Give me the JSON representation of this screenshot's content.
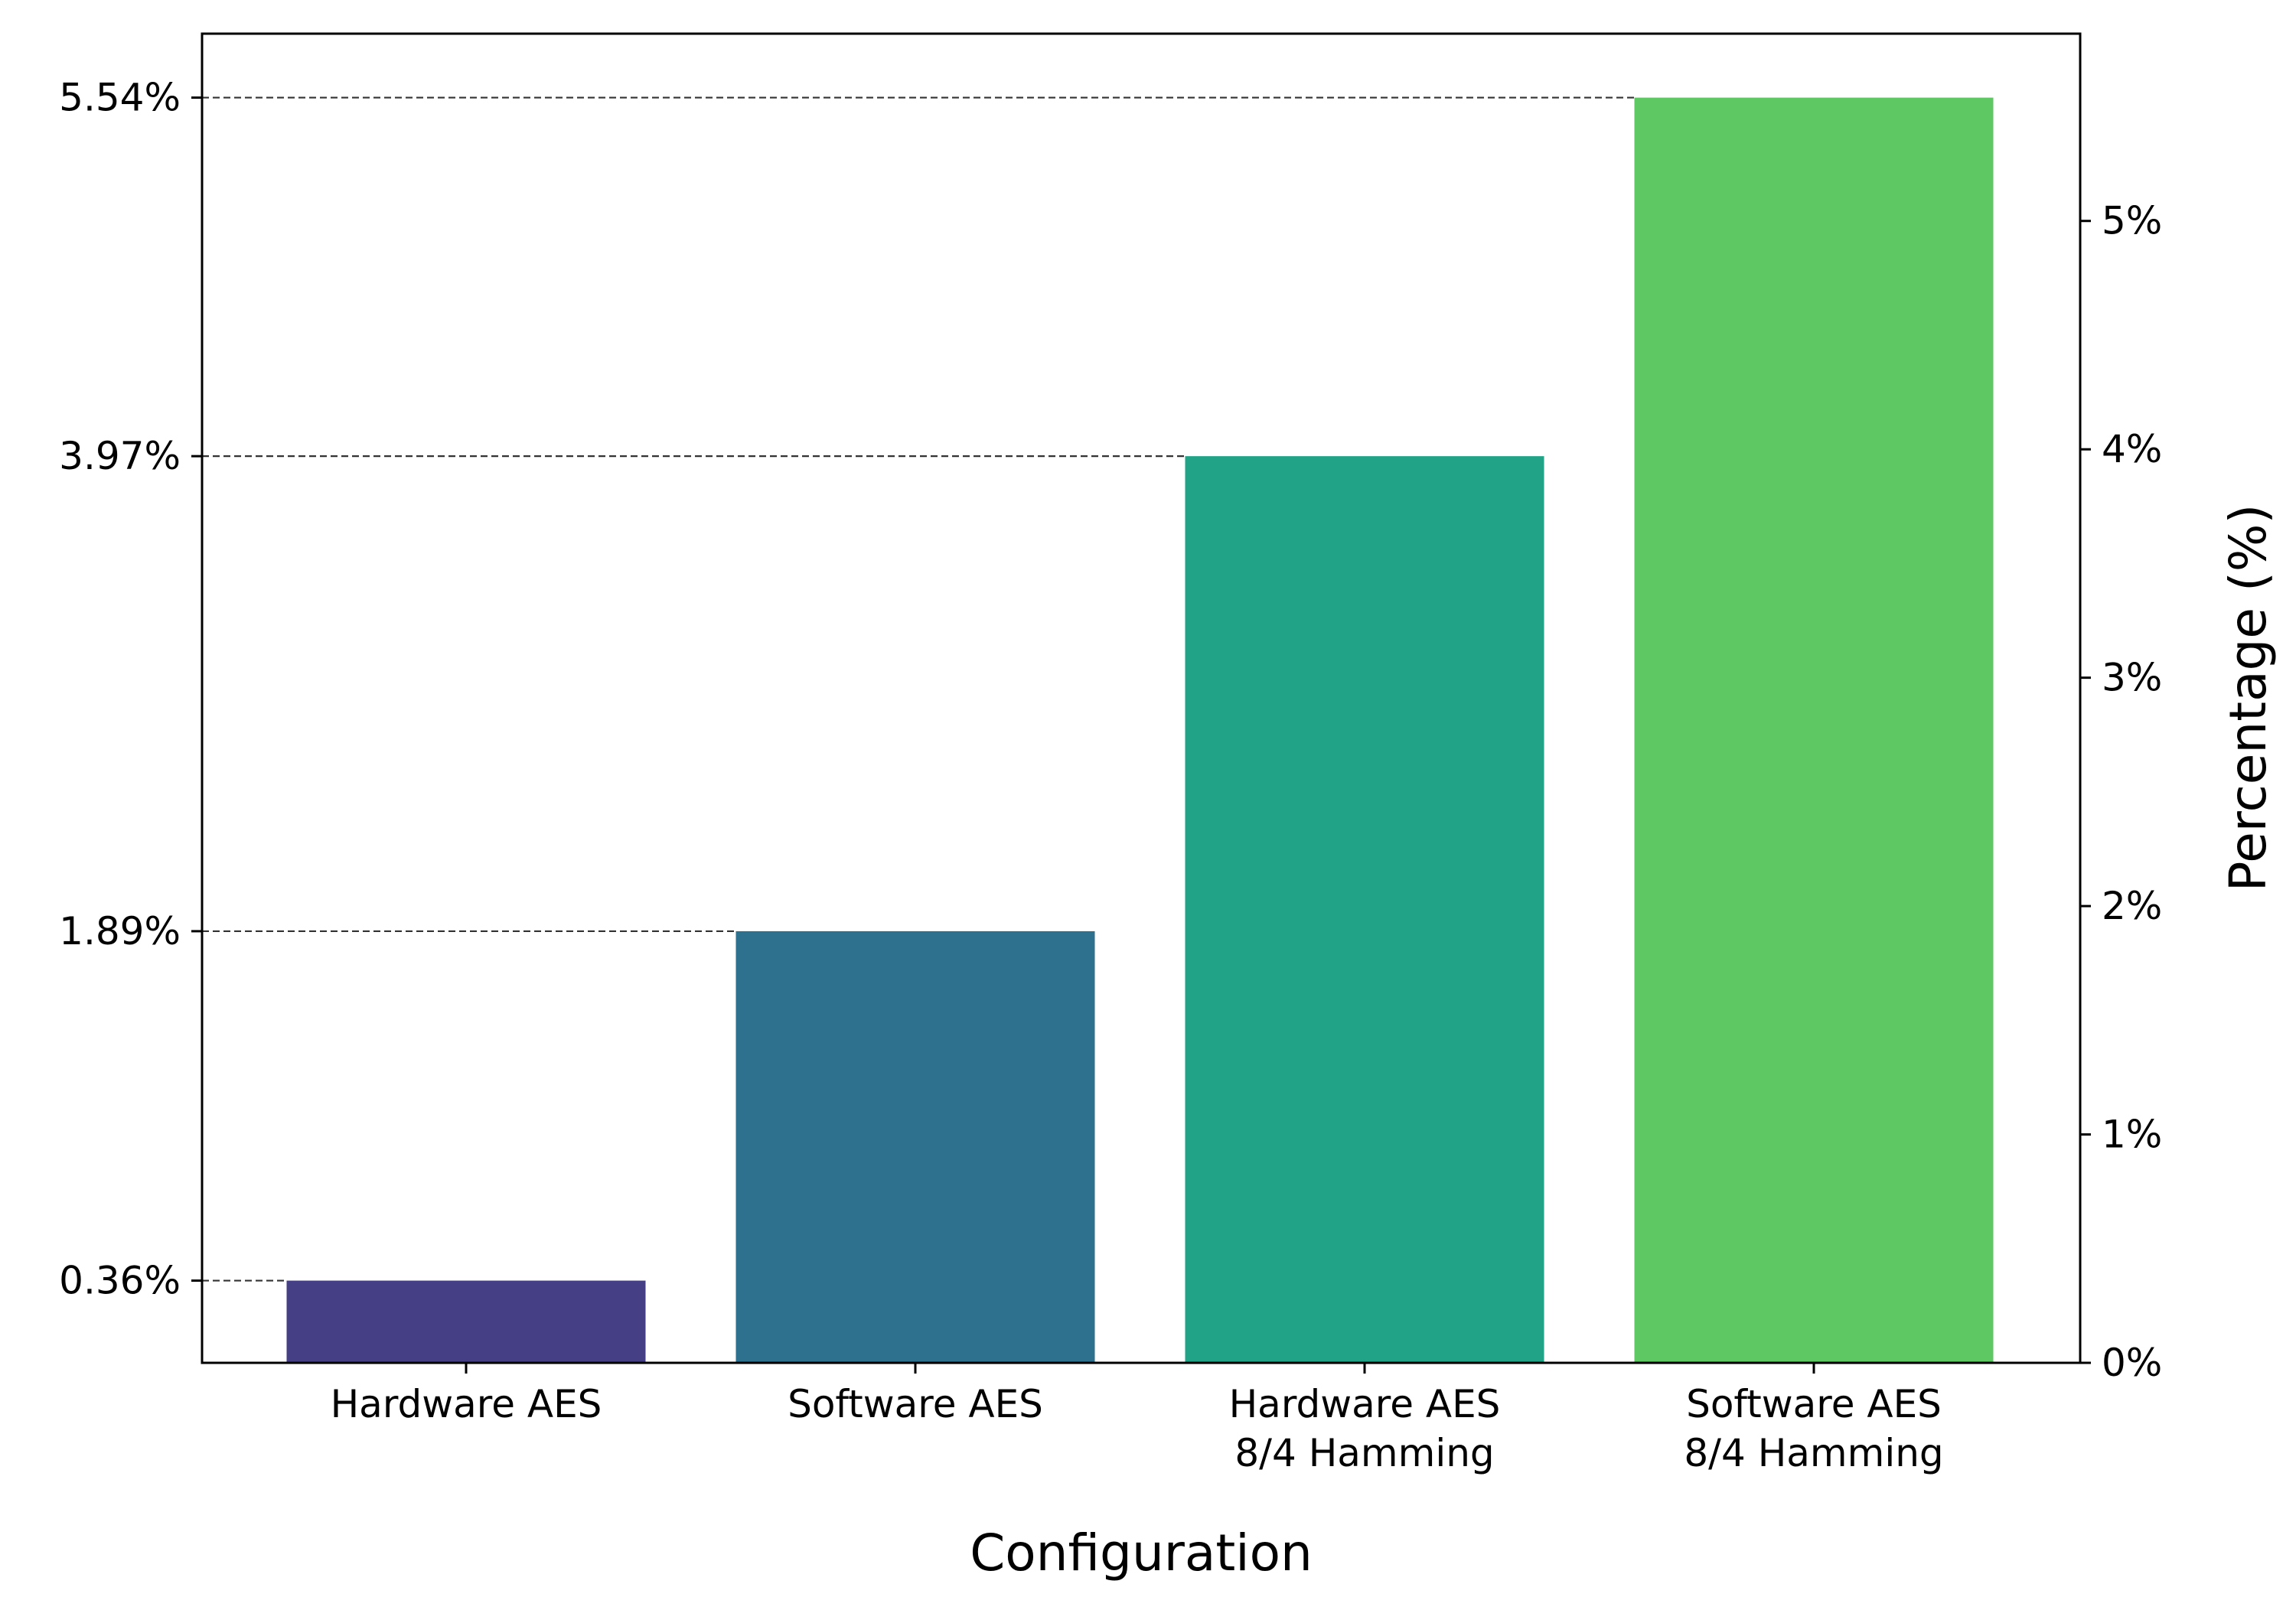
{
  "chart_data": {
    "type": "bar",
    "categories": [
      [
        "Hardware AES"
      ],
      [
        "Software AES"
      ],
      [
        "Hardware AES",
        "8/4 Hamming"
      ],
      [
        "Software AES",
        "8/4 Hamming"
      ]
    ],
    "values": [
      0.36,
      1.89,
      3.97,
      5.54
    ],
    "value_labels": [
      "0.36%",
      "1.89%",
      "3.97%",
      "5.54%"
    ],
    "colors": [
      "#453f86",
      "#2d718e",
      "#20a387",
      "#5ec962"
    ],
    "title": "",
    "xlabel": "Configuration",
    "ylabel": "Percentage (%)",
    "ylim": [
      0,
      5.82
    ],
    "right_axis_ticks": [
      {
        "value": 0,
        "label": "0%"
      },
      {
        "value": 1,
        "label": "1%"
      },
      {
        "value": 2,
        "label": "2%"
      },
      {
        "value": 3,
        "label": "3%"
      },
      {
        "value": 4,
        "label": "4%"
      },
      {
        "value": 5,
        "label": "5%"
      }
    ],
    "grid": false,
    "value_guides": "dashed lines from left axis to bar top"
  }
}
